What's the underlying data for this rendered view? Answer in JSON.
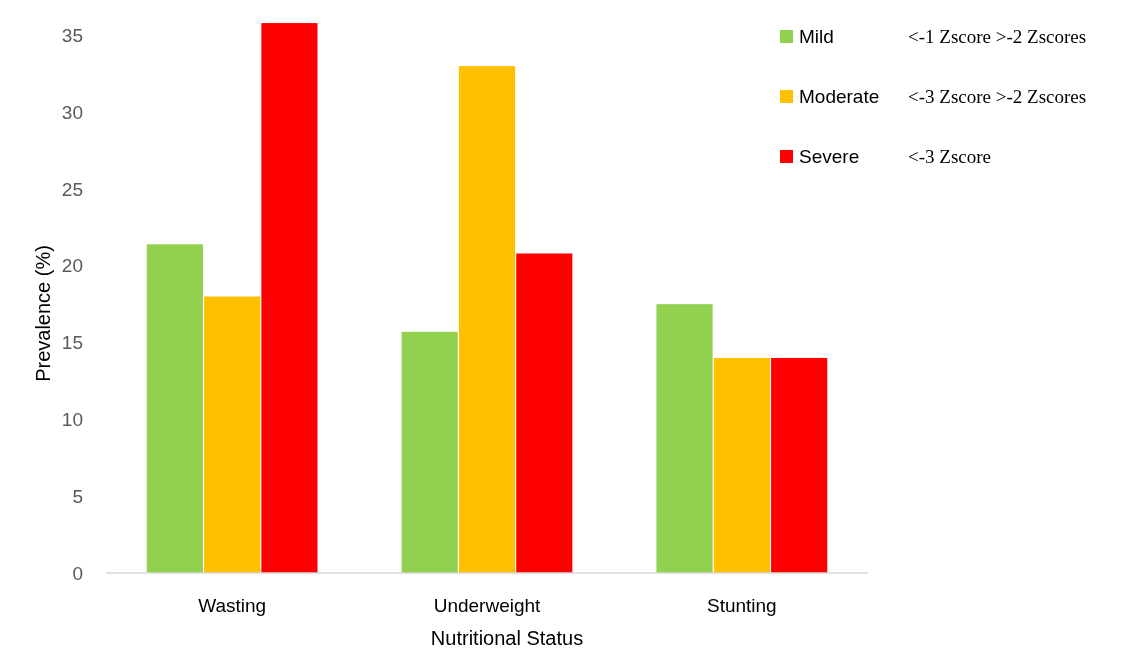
{
  "chart_data": {
    "type": "bar",
    "xlabel": "Nutritional Status",
    "ylabel": "Prevalence (%)",
    "categories": [
      "Wasting",
      "Underweight",
      "Stunting"
    ],
    "series": [
      {
        "name": "Mild",
        "color": "#92d050",
        "values": [
          21.4,
          15.7,
          17.5
        ]
      },
      {
        "name": "Moderate",
        "color": "#ffc000",
        "values": [
          18.0,
          33.0,
          14.0
        ]
      },
      {
        "name": "Severe",
        "color": "#ff0000",
        "values": [
          35.8,
          20.8,
          14.0
        ]
      }
    ],
    "ylim": [
      0,
      36
    ],
    "yticks": [
      0,
      5,
      10,
      15,
      20,
      25,
      30,
      35
    ],
    "grid": false,
    "legend": "top right",
    "annotations": [
      "<-1 Zscore >-2 Zscores",
      "<-3 Zscore >-2 Zscores",
      "<-3 Zscore"
    ]
  }
}
